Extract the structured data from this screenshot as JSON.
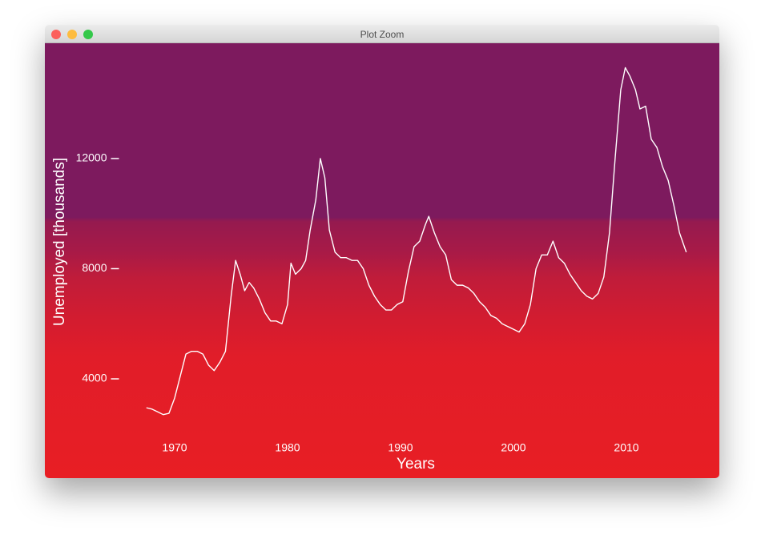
{
  "window": {
    "title": "Plot Zoom"
  },
  "chart_data": {
    "type": "line",
    "x_label": "Years",
    "y_label": "Unemployed [thousands]",
    "color": "#ffffff",
    "x": [
      1967.5,
      1968.0,
      1968.5,
      1969.0,
      1969.5,
      1970.0,
      1970.5,
      1971.0,
      1971.5,
      1972.0,
      1972.5,
      1973.0,
      1973.5,
      1974.0,
      1974.5,
      1975.0,
      1975.4,
      1975.8,
      1976.2,
      1976.6,
      1977.0,
      1977.5,
      1978.0,
      1978.5,
      1979.0,
      1979.5,
      1980.0,
      1980.3,
      1980.7,
      1981.2,
      1981.6,
      1982.0,
      1982.5,
      1982.9,
      1983.3,
      1983.7,
      1984.2,
      1984.7,
      1985.2,
      1985.7,
      1986.2,
      1986.7,
      1987.2,
      1987.7,
      1988.2,
      1988.7,
      1989.2,
      1989.7,
      1990.2,
      1990.7,
      1991.2,
      1991.7,
      1992.2,
      1992.5,
      1993.0,
      1993.5,
      1994.0,
      1994.5,
      1995.0,
      1995.5,
      1996.0,
      1996.5,
      1997.0,
      1997.5,
      1998.0,
      1998.5,
      1999.0,
      1999.5,
      2000.0,
      2000.5,
      2001.0,
      2001.5,
      2002.0,
      2002.5,
      2003.0,
      2003.5,
      2004.0,
      2004.5,
      2005.0,
      2005.5,
      2006.0,
      2006.5,
      2007.0,
      2007.5,
      2008.0,
      2008.5,
      2009.0,
      2009.5,
      2009.9,
      2010.3,
      2010.8,
      2011.2,
      2011.7,
      2012.2,
      2012.7,
      2013.2,
      2013.7,
      2014.2,
      2014.7,
      2015.3
    ],
    "values": [
      2950,
      2900,
      2800,
      2700,
      2750,
      3300,
      4100,
      4900,
      5000,
      5000,
      4900,
      4500,
      4300,
      4600,
      5000,
      7000,
      8300,
      7800,
      7200,
      7500,
      7300,
      6900,
      6400,
      6100,
      6100,
      6000,
      6700,
      8200,
      7800,
      8000,
      8300,
      9400,
      10500,
      12000,
      11300,
      9400,
      8600,
      8400,
      8400,
      8300,
      8300,
      8000,
      7400,
      7000,
      6700,
      6500,
      6500,
      6700,
      6800,
      7900,
      8800,
      9000,
      9600,
      9900,
      9300,
      8800,
      8500,
      7600,
      7400,
      7400,
      7300,
      7100,
      6800,
      6600,
      6300,
      6200,
      6000,
      5900,
      5800,
      5700,
      6000,
      6700,
      8000,
      8500,
      8500,
      9000,
      8400,
      8200,
      7800,
      7500,
      7200,
      7000,
      6900,
      7100,
      7700,
      9300,
      12000,
      14500,
      15300,
      15000,
      14500,
      13800,
      13900,
      12700,
      12400,
      11700,
      11200,
      10300,
      9300,
      8600
    ],
    "xlim": [
      1965,
      2017
    ],
    "ylim": [
      2000,
      16000
    ],
    "xticks": [
      1970,
      1980,
      1990,
      2000,
      2010
    ],
    "yticks": [
      4000,
      8000,
      12000
    ]
  }
}
